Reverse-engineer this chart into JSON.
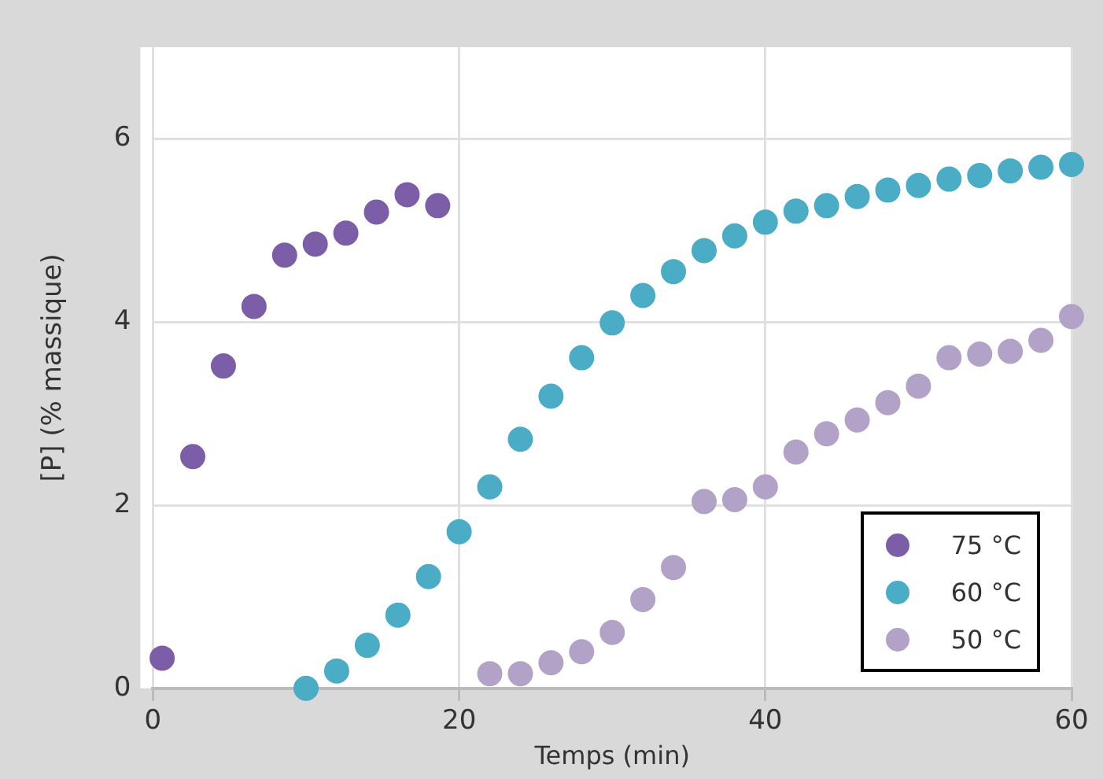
{
  "chart_data": {
    "type": "scatter",
    "xlabel": "Temps (min)",
    "ylabel": "[P] (% massique)",
    "xlim": [
      0,
      60
    ],
    "xticks": [
      0,
      20,
      40,
      60
    ],
    "ylim": [
      0,
      7
    ],
    "yticks": [
      0,
      2,
      4,
      6
    ],
    "grid": true,
    "legend": "bottom right",
    "marker": "circle",
    "series": [
      {
        "name": "75 °C",
        "color": "#7b5ea7",
        "x": [
          0.6,
          2.6,
          4.6,
          6.6,
          8.6,
          10.6,
          12.6,
          14.6,
          16.6,
          18.6
        ],
        "values": [
          0.33,
          2.53,
          3.52,
          4.17,
          4.73,
          4.85,
          4.97,
          5.2,
          5.39,
          5.27
        ]
      },
      {
        "name": "60 °C",
        "color": "#4bacc6",
        "x": [
          10,
          12,
          14,
          16,
          18,
          20,
          22,
          24,
          26,
          28,
          30,
          32,
          34,
          36,
          38,
          40,
          42,
          44,
          46,
          48,
          50,
          52,
          54,
          56,
          58,
          60
        ],
        "values": [
          0,
          0.19,
          0.47,
          0.8,
          1.22,
          1.71,
          2.2,
          2.72,
          3.19,
          3.61,
          3.99,
          4.29,
          4.55,
          4.78,
          4.94,
          5.09,
          5.21,
          5.27,
          5.37,
          5.44,
          5.49,
          5.56,
          5.6,
          5.65,
          5.69,
          5.72
        ]
      },
      {
        "name": "50 °C",
        "color": "#b3a2c7",
        "x": [
          22,
          24,
          26,
          28,
          30,
          32,
          34,
          36,
          38,
          40,
          42,
          44,
          46,
          48,
          50,
          52,
          54,
          56,
          58,
          60
        ],
        "values": [
          0.16,
          0.16,
          0.28,
          0.4,
          0.61,
          0.97,
          1.32,
          2.04,
          2.06,
          2.2,
          2.58,
          2.78,
          2.93,
          3.12,
          3.3,
          3.61,
          3.65,
          3.68,
          3.8,
          4.06
        ]
      }
    ]
  }
}
